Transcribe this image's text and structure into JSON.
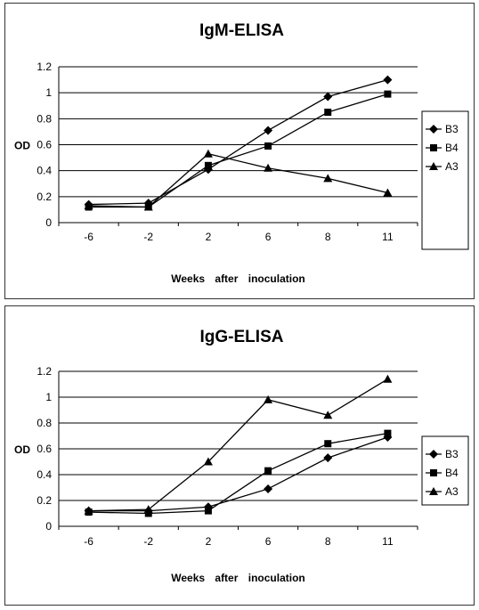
{
  "chart_data": [
    {
      "type": "line",
      "title": "IgM-ELISA",
      "xlabel": "Weeks after inoculation",
      "ylabel": "OD",
      "categories": [
        "-6",
        "-2",
        "2",
        "6",
        "8",
        "11"
      ],
      "ylim": [
        0,
        1.2
      ],
      "yticks": [
        "0",
        "0.2",
        "0.4",
        "0.6",
        "0.8",
        "1",
        "1.2"
      ],
      "grid": true,
      "legend": "right",
      "series": [
        {
          "name": "B3",
          "marker": "diamond",
          "values": [
            0.14,
            0.15,
            0.41,
            0.71,
            0.97,
            1.1
          ]
        },
        {
          "name": "B4",
          "marker": "square",
          "values": [
            0.12,
            0.12,
            0.44,
            0.59,
            0.85,
            0.99
          ]
        },
        {
          "name": "A3",
          "marker": "triangle",
          "values": [
            0.13,
            0.12,
            0.53,
            0.42,
            0.34,
            0.23
          ]
        }
      ]
    },
    {
      "type": "line",
      "title": "IgG-ELISA",
      "xlabel": "Weeks after inoculation",
      "ylabel": "OD",
      "categories": [
        "-6",
        "-2",
        "2",
        "6",
        "8",
        "11"
      ],
      "ylim": [
        0,
        1.2
      ],
      "yticks": [
        "0",
        "0.2",
        "0.4",
        "0.6",
        "0.8",
        "1",
        "1.2"
      ],
      "grid": true,
      "legend": "right",
      "series": [
        {
          "name": "B3",
          "marker": "diamond",
          "values": [
            0.12,
            0.12,
            0.15,
            0.29,
            0.53,
            0.69
          ]
        },
        {
          "name": "B4",
          "marker": "square",
          "values": [
            0.11,
            0.1,
            0.12,
            0.43,
            0.64,
            0.72
          ]
        },
        {
          "name": "A3",
          "marker": "triangle",
          "values": [
            0.12,
            0.13,
            0.5,
            0.98,
            0.86,
            1.14
          ]
        }
      ]
    }
  ]
}
